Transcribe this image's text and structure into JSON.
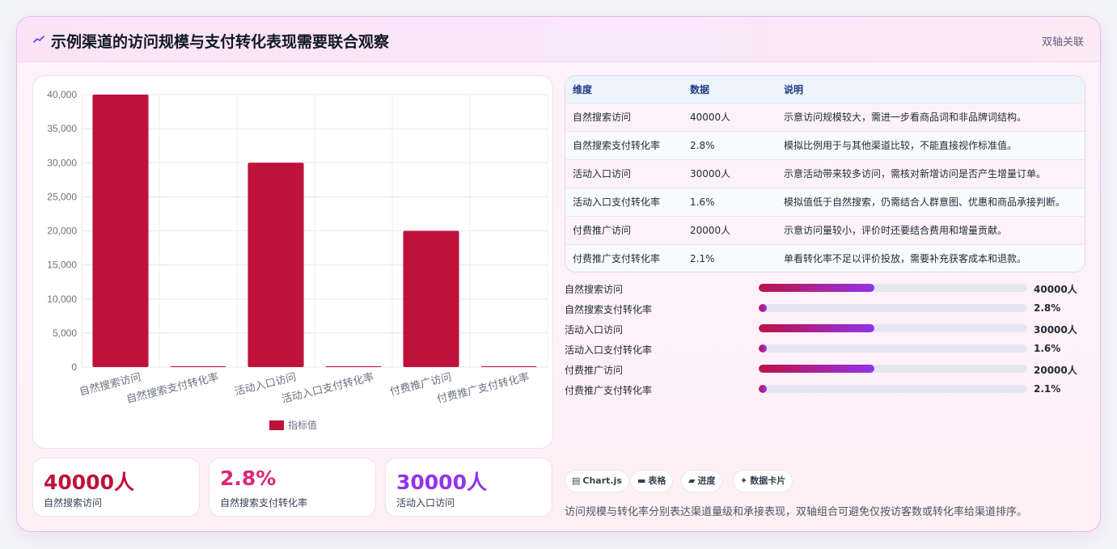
{
  "header": {
    "title": "示例渠道的访问规模与支付转化表现需要联合观察",
    "tag": "双轴关联",
    "icon": "trend-line-icon"
  },
  "chart_data": {
    "type": "bar",
    "categories": [
      "自然搜索访问",
      "自然搜索支付转化率",
      "活动入口访问",
      "活动入口支付转化率",
      "付费推广访问",
      "付费推广支付转化率"
    ],
    "series": [
      {
        "name": "指标值",
        "values": [
          40000,
          2.8,
          30000,
          1.6,
          20000,
          2.1
        ],
        "color": "#be123c"
      }
    ],
    "yticks": [
      "40,000",
      "35,000",
      "30,000",
      "25,000",
      "20,000",
      "15,000",
      "10,000",
      "5,000",
      "0"
    ],
    "ylim": [
      0,
      40000
    ],
    "legend": "bottom",
    "grid": true
  },
  "kpis": [
    {
      "value": "40000人",
      "label": "自然搜索访问",
      "color": "#be123c"
    },
    {
      "value": "2.8%",
      "label": "自然搜索支付转化率",
      "color": "#db2777"
    },
    {
      "value": "30000人",
      "label": "活动入口访问",
      "color": "#9333ea"
    }
  ],
  "table": {
    "headers": [
      "维度",
      "数据",
      "说明"
    ],
    "rows": [
      [
        "自然搜索访问",
        "40000人",
        "示意访问规模较大，需进一步看商品词和非品牌词结构。"
      ],
      [
        "自然搜索支付转化率",
        "2.8%",
        "模拟比例用于与其他渠道比较，不能直接视作标准值。"
      ],
      [
        "活动入口访问",
        "30000人",
        "示意活动带来较多访问，需核对新增访问是否产生增量订单。"
      ],
      [
        "活动入口支付转化率",
        "1.6%",
        "模拟值低于自然搜索，仍需结合人群意图、优惠和商品承接判断。"
      ],
      [
        "付费推广访问",
        "20000人",
        "示意访问量较小，评价时还要结合费用和增量贡献。"
      ],
      [
        "付费推广支付转化率",
        "2.1%",
        "单看转化率不足以评价投放，需要补充获客成本和退款。"
      ]
    ]
  },
  "progress": [
    {
      "label": "自然搜索访问",
      "value": "40000人",
      "fraction": 0.43
    },
    {
      "label": "自然搜索支付转化率",
      "value": "2.8%",
      "fraction": 0.03
    },
    {
      "label": "活动入口访问",
      "value": "30000人",
      "fraction": 0.43
    },
    {
      "label": "活动入口支付转化率",
      "value": "1.6%",
      "fraction": 0.03
    },
    {
      "label": "付费推广访问",
      "value": "20000人",
      "fraction": 0.43
    },
    {
      "label": "付费推广支付转化率",
      "value": "2.1%",
      "fraction": 0.03
    }
  ],
  "chips": [
    {
      "icon": "chart-icon",
      "glyph": "▤",
      "label": "Chart.js"
    },
    {
      "icon": "table-icon",
      "glyph": "▬",
      "label": "表格"
    },
    {
      "icon": "progress-icon",
      "glyph": "▰",
      "label": "进度"
    },
    {
      "icon": "sparkle-icon",
      "glyph": "✦",
      "label": "数据卡片"
    }
  ],
  "footnote": "访问规模与转化率分别表达渠道量级和承接表现，双轴组合可避免仅按访客数或转化率给渠道排序。"
}
